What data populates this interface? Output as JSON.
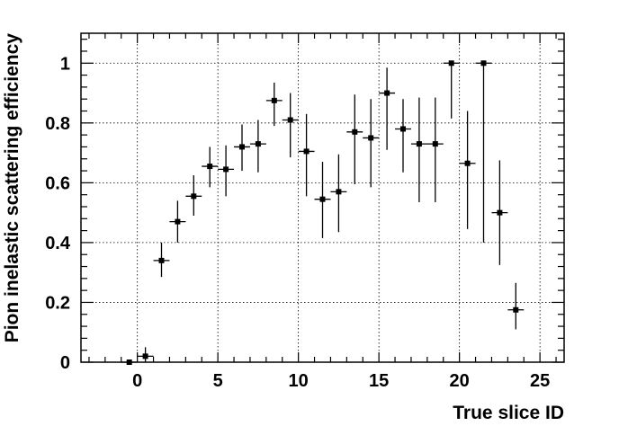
{
  "chart_data": {
    "type": "scatter",
    "title": "",
    "xlabel": "True slice ID",
    "ylabel": "Pion inelastic scattering efficiency",
    "xlim": [
      -3.5,
      26.5
    ],
    "ylim": [
      0,
      1.1
    ],
    "xticks": [
      0,
      5,
      10,
      15,
      20,
      25
    ],
    "yticks": [
      0,
      0.2,
      0.4,
      0.6,
      0.8,
      1
    ],
    "ytick_labels": [
      "0",
      "0.2",
      "0.4",
      "0.6",
      "0.8",
      "1"
    ],
    "grid": true,
    "legend": "none",
    "x_error": 0.5,
    "series": [
      {
        "points": [
          {
            "x": -0.5,
            "y": 0.0,
            "lo": 0.0,
            "hi": 0.0
          },
          {
            "x": 0.5,
            "y": 0.02,
            "lo": 0.0,
            "hi": 0.05
          },
          {
            "x": 1.5,
            "y": 0.34,
            "lo": 0.285,
            "hi": 0.4
          },
          {
            "x": 2.5,
            "y": 0.47,
            "lo": 0.4,
            "hi": 0.54
          },
          {
            "x": 3.5,
            "y": 0.555,
            "lo": 0.49,
            "hi": 0.625
          },
          {
            "x": 4.5,
            "y": 0.655,
            "lo": 0.585,
            "hi": 0.72
          },
          {
            "x": 5.5,
            "y": 0.645,
            "lo": 0.555,
            "hi": 0.725
          },
          {
            "x": 6.5,
            "y": 0.72,
            "lo": 0.64,
            "hi": 0.795
          },
          {
            "x": 7.5,
            "y": 0.73,
            "lo": 0.635,
            "hi": 0.81
          },
          {
            "x": 8.5,
            "y": 0.875,
            "lo": 0.79,
            "hi": 0.935
          },
          {
            "x": 9.5,
            "y": 0.81,
            "lo": 0.685,
            "hi": 0.9
          },
          {
            "x": 10.5,
            "y": 0.705,
            "lo": 0.555,
            "hi": 0.83
          },
          {
            "x": 11.5,
            "y": 0.545,
            "lo": 0.415,
            "hi": 0.67
          },
          {
            "x": 12.5,
            "y": 0.57,
            "lo": 0.435,
            "hi": 0.695
          },
          {
            "x": 13.5,
            "y": 0.77,
            "lo": 0.595,
            "hi": 0.895
          },
          {
            "x": 14.5,
            "y": 0.75,
            "lo": 0.585,
            "hi": 0.88
          },
          {
            "x": 15.5,
            "y": 0.9,
            "lo": 0.71,
            "hi": 0.985
          },
          {
            "x": 16.5,
            "y": 0.78,
            "lo": 0.635,
            "hi": 0.88
          },
          {
            "x": 17.5,
            "y": 0.73,
            "lo": 0.535,
            "hi": 0.885
          },
          {
            "x": 18.5,
            "y": 0.73,
            "lo": 0.535,
            "hi": 0.885
          },
          {
            "x": 19.5,
            "y": 1.0,
            "lo": 0.815,
            "hi": 1.0
          },
          {
            "x": 20.5,
            "y": 0.665,
            "lo": 0.445,
            "hi": 0.84
          },
          {
            "x": 21.5,
            "y": 1.0,
            "lo": 0.4,
            "hi": 1.0
          },
          {
            "x": 22.5,
            "y": 0.5,
            "lo": 0.325,
            "hi": 0.675
          },
          {
            "x": 23.5,
            "y": 0.175,
            "lo": 0.11,
            "hi": 0.265
          }
        ]
      }
    ]
  }
}
